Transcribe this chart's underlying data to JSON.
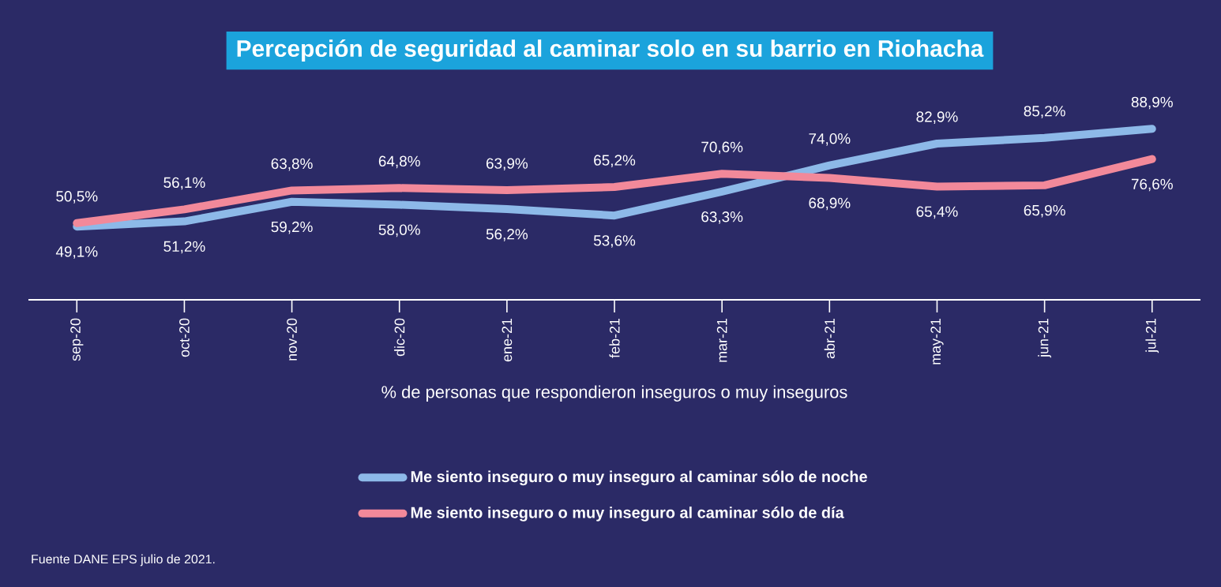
{
  "chart_data": {
    "type": "line",
    "title": "Percepción de seguridad al caminar solo en su barrio en Riohacha",
    "xlabel": "% de personas que respondieron inseguros o muy inseguros",
    "categories": [
      "sep-20",
      "oct-20",
      "nov-20",
      "dic-20",
      "ene-21",
      "feb-21",
      "mar-21",
      "abr-21",
      "may-21",
      "jun-21",
      "jul-21"
    ],
    "series": [
      {
        "name": "Me siento inseguro o muy inseguro al caminar sólo de noche",
        "color": "#8db9e8",
        "values": [
          49.1,
          51.2,
          59.2,
          58.0,
          56.2,
          53.6,
          63.3,
          74.0,
          82.9,
          85.2,
          88.9
        ],
        "value_labels": [
          "49,1%",
          "51,2%",
          "59,2%",
          "58,0%",
          "56,2%",
          "53,6%",
          "63,3%",
          "74,0%",
          "82,9%",
          "85,2%",
          "88,9%"
        ]
      },
      {
        "name": "Me siento inseguro o muy inseguro al caminar sólo de día",
        "color": "#f2899a",
        "values": [
          50.5,
          56.1,
          63.8,
          64.8,
          63.9,
          65.2,
          70.6,
          68.9,
          65.4,
          65.9,
          76.6
        ],
        "value_labels": [
          "50,5%",
          "56,1%",
          "63,8%",
          "64,8%",
          "63,9%",
          "65,2%",
          "70,6%",
          "68,9%",
          "65,4%",
          "65,9%",
          "76,6%"
        ]
      }
    ],
    "legend": "bottom",
    "grid": false,
    "line_style": "solid",
    "annotations": [
      "Fuente  DANE EPS julio de 2021."
    ]
  }
}
